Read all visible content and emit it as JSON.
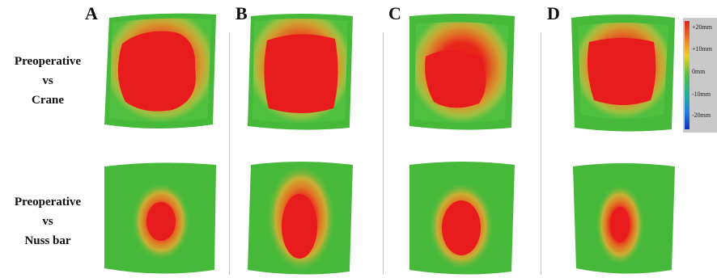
{
  "columns": [
    {
      "letter": "A"
    },
    {
      "letter": "B"
    },
    {
      "letter": "C"
    },
    {
      "letter": "D"
    }
  ],
  "rows": [
    {
      "line1": "Preoperative",
      "line2": "vs",
      "line3": "Crane"
    },
    {
      "line1": "Preoperative",
      "line2": "vs",
      "line3": "Nuss bar"
    }
  ],
  "scale": {
    "ticks": [
      "+20mm",
      "+10mm",
      "0mm",
      "-10mm",
      "-20mm"
    ]
  }
}
